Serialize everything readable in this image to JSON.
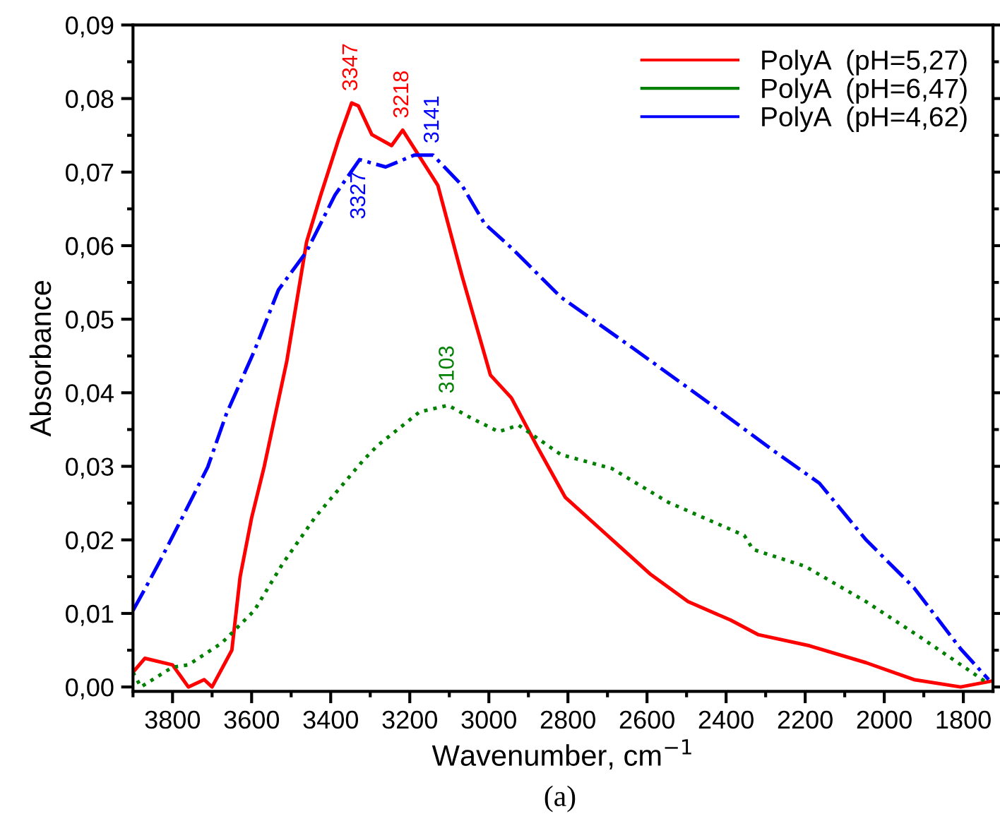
{
  "chart_data": {
    "type": "line",
    "xlabel": "Wavenumber, cm$^{−1}$",
    "ylabel": "Absorbance",
    "xlim": [
      3900,
      1725
    ],
    "ylim": [
      -0.0006,
      0.09
    ],
    "xticks": [
      3800,
      3600,
      3400,
      3200,
      3000,
      2800,
      2600,
      2400,
      2200,
      2000,
      1800
    ],
    "yticks": [
      {
        "value": 0,
        "label": "0,00"
      },
      {
        "value": 0.01,
        "label": "0,01"
      },
      {
        "value": 0.02,
        "label": "0,02"
      },
      {
        "value": 0.03,
        "label": "0,03"
      },
      {
        "value": 0.04,
        "label": "0,04"
      },
      {
        "value": 0.05,
        "label": "0,05"
      },
      {
        "value": 0.06,
        "label": "0,06"
      },
      {
        "value": 0.07,
        "label": "0,07"
      },
      {
        "value": 0.08,
        "label": "0,08"
      },
      {
        "value": 0.09,
        "label": "0,09"
      }
    ],
    "grid": false,
    "legend": "top right",
    "marker": "none",
    "series": [
      {
        "name": "PolyA  (pH=5,27)",
        "color": "#ff0000",
        "line_style": "solid",
        "x": [
          3900,
          3870,
          3800,
          3760,
          3720,
          3700,
          3650,
          3629,
          3600,
          3568,
          3511,
          3461,
          3425,
          3379,
          3347,
          3330,
          3296,
          3246,
          3218,
          3129,
          3068,
          2996,
          2943,
          2879,
          2807,
          2700,
          2593,
          2496,
          2389,
          2318,
          2189,
          2046,
          1925,
          1807,
          1729
        ],
        "values": [
          0.002,
          0.0039,
          0.003,
          0,
          0.001,
          0,
          0.005,
          0.015,
          0.023,
          0.03,
          0.0443,
          0.0605,
          0.0669,
          0.0746,
          0.0794,
          0.079,
          0.0751,
          0.0736,
          0.0757,
          0.0682,
          0.0559,
          0.0424,
          0.0393,
          0.0328,
          0.0258,
          0.0206,
          0.0154,
          0.0116,
          0.0091,
          0.0071,
          0.0056,
          0.0033,
          0.001,
          0,
          0.0008
        ]
      },
      {
        "name": "PolyA  (pH=6,47)",
        "color": "#008000",
        "line_style": "dotted",
        "x": [
          3900,
          3880,
          3800,
          3760,
          3675,
          3593,
          3521,
          3439,
          3318,
          3282,
          3175,
          3103,
          3046,
          2975,
          2925,
          2818,
          2689,
          2546,
          2354,
          2332,
          2200,
          2046,
          1904,
          1746
        ],
        "values": [
          0.002,
          0,
          0.0027,
          0.003,
          0.006,
          0.0104,
          0.0168,
          0.0231,
          0.0308,
          0.0328,
          0.0374,
          0.0383,
          0.0366,
          0.0347,
          0.0356,
          0.0316,
          0.0297,
          0.0251,
          0.0206,
          0.0187,
          0.0164,
          0.0116,
          0.0066,
          0.0008
        ]
      },
      {
        "name": "PolyA  (pH=4,62)",
        "color": "#0000ff",
        "line_style": "dashdot",
        "x": [
          3900,
          3868,
          3832,
          3771,
          3711,
          3664,
          3593,
          3532,
          3461,
          3389,
          3327,
          3261,
          3189,
          3141,
          3068,
          3011,
          2939,
          2818,
          2639,
          2461,
          2282,
          2164,
          2046,
          1925,
          1807,
          1736
        ],
        "values": [
          0.0104,
          0.0135,
          0.0171,
          0.0235,
          0.0299,
          0.0371,
          0.0457,
          0.054,
          0.0592,
          0.0669,
          0.0717,
          0.0707,
          0.0723,
          0.0723,
          0.0682,
          0.063,
          0.0595,
          0.053,
          0.0462,
          0.0393,
          0.0322,
          0.0277,
          0.02,
          0.0135,
          0.0052,
          0.001
        ]
      }
    ],
    "annotations": [
      {
        "text": "3347",
        "x": 3347,
        "y": 0.0794
      },
      {
        "text": "3218",
        "x": 3218,
        "y": 0.0757
      },
      {
        "text": "3141",
        "x": 3141,
        "y": 0.0723
      },
      {
        "text": "3327",
        "x": 3327,
        "y": 0.0717
      },
      {
        "text": "3103",
        "x": 3103,
        "y": 0.0383
      },
      "(a)"
    ]
  }
}
